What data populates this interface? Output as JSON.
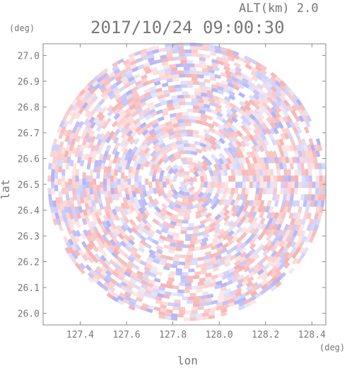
{
  "header": {
    "altitude_text": "ALT(km)  2.0",
    "timestamp": "2017/10/24 09:00:30"
  },
  "chart_data": {
    "type": "heatmap",
    "title": "2017/10/24 09:00:30",
    "subtitle": "ALT(km)  2.0",
    "xlabel": "lon",
    "ylabel": "lat",
    "x_unit": "(deg)",
    "y_unit": "(deg)",
    "xlim": [
      127.24,
      128.46
    ],
    "ylim": [
      25.955,
      27.045
    ],
    "x_ticks": [
      "127.4",
      "127.6",
      "127.8",
      "128.0",
      "128.2",
      "128.4"
    ],
    "x_tick_values": [
      127.4,
      127.6,
      127.8,
      128.0,
      128.2,
      128.4
    ],
    "y_ticks": [
      "26.0",
      "26.1",
      "26.2",
      "26.3",
      "26.4",
      "26.5",
      "26.6",
      "26.7",
      "26.8",
      "26.9",
      "27.0"
    ],
    "y_tick_values": [
      26.0,
      26.1,
      26.2,
      26.3,
      26.4,
      26.5,
      26.6,
      26.7,
      26.8,
      26.9,
      27.0
    ],
    "center": {
      "lon": 127.86,
      "lat": 26.51
    },
    "radius_deg_lat": 0.54,
    "colors": {
      "positive": "#f08080",
      "negative": "#8080f0",
      "neutral": "#ffffff",
      "axis": "#888888"
    },
    "grid": false
  }
}
